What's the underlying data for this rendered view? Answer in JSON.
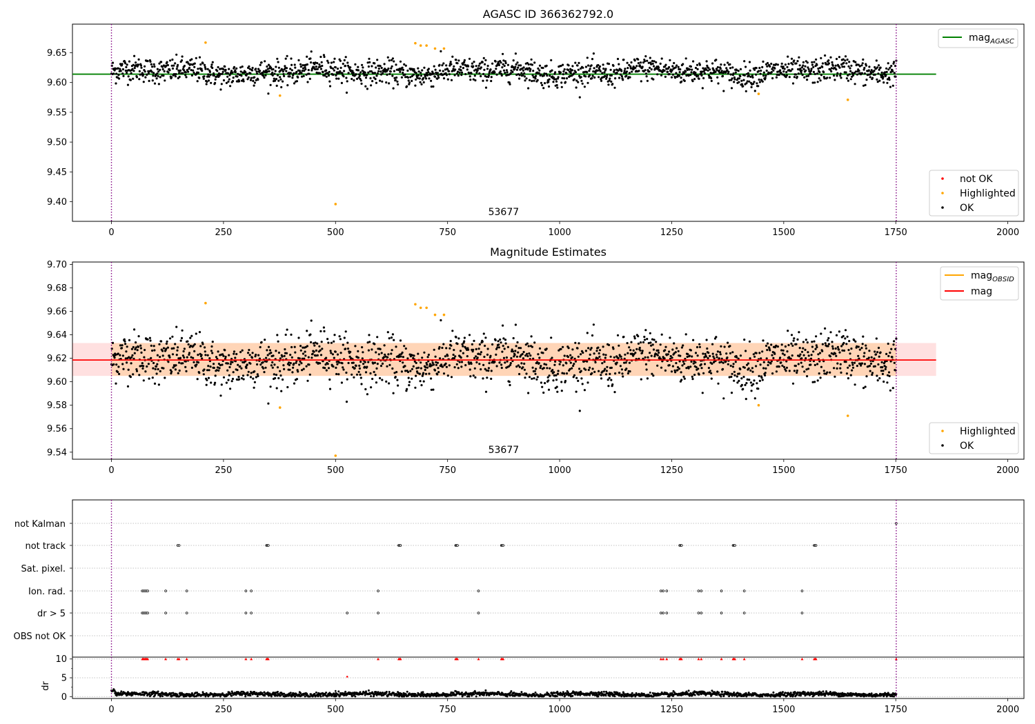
{
  "chart_data": [
    {
      "type": "scatter",
      "title": "AGASC ID 366362792.0",
      "xlabel": "",
      "ylabel": "",
      "xlim": [
        -87,
        2036
      ],
      "ylim": [
        9.367,
        9.698
      ],
      "xticks": [
        0,
        250,
        500,
        750,
        1000,
        1250,
        1500,
        1750,
        2000
      ],
      "yticks": [
        9.4,
        9.45,
        9.5,
        9.55,
        9.6,
        9.65
      ],
      "ytick_labels": [
        "9.40",
        "9.45",
        "9.50",
        "9.55",
        "9.60",
        "9.65"
      ],
      "obs_boundaries": [
        0,
        1751
      ],
      "obs_label": "53677",
      "obs_label_x": 875,
      "mag_agasc": 9.614,
      "mag_agasc_xrange": [
        -87,
        1840
      ],
      "ok_range": [
        0,
        1751
      ],
      "ok_center": 9.618,
      "ok_sigma": 0.013,
      "highlighted": [
        [
          210,
          9.667
        ],
        [
          376,
          9.578
        ],
        [
          500,
          9.396
        ],
        [
          678,
          9.666
        ],
        [
          690,
          9.662
        ],
        [
          703,
          9.662
        ],
        [
          722,
          9.657
        ],
        [
          742,
          9.657
        ],
        [
          1444,
          9.581
        ],
        [
          1643,
          9.571
        ]
      ],
      "legends": [
        {
          "position": "upper-right",
          "entries": [
            {
              "label": "mag",
              "sub": "AGASC",
              "color": "#008000",
              "kind": "line"
            }
          ]
        },
        {
          "position": "lower-right",
          "entries": [
            {
              "label": "not OK",
              "color": "#ff0000",
              "kind": "marker"
            },
            {
              "label": "Highlighted",
              "color": "#ffa500",
              "kind": "marker"
            },
            {
              "label": "OK",
              "color": "#000000",
              "kind": "marker"
            }
          ]
        }
      ]
    },
    {
      "type": "scatter",
      "title": "Magnitude Estimates",
      "xlabel": "",
      "ylabel": "",
      "xlim": [
        -87,
        2036
      ],
      "ylim": [
        9.534,
        9.702
      ],
      "xticks": [
        0,
        250,
        500,
        750,
        1000,
        1250,
        1500,
        1750,
        2000
      ],
      "yticks": [
        9.54,
        9.56,
        9.58,
        9.6,
        9.62,
        9.64,
        9.66,
        9.68,
        9.7
      ],
      "ytick_labels": [
        "9.54",
        "9.56",
        "9.58",
        "9.60",
        "9.62",
        "9.64",
        "9.66",
        "9.68",
        "9.70"
      ],
      "obs_boundaries": [
        0,
        1751
      ],
      "obs_label": "53677",
      "obs_label_x": 875,
      "mag": 9.6185,
      "mag_band": [
        9.605,
        9.633
      ],
      "mag_band_xrange": [
        -87,
        1840
      ],
      "mag_obsid_band": [
        9.605,
        9.633
      ],
      "mag_obsid_xrange": [
        0,
        1751
      ],
      "ok_range": [
        0,
        1751
      ],
      "ok_center": 9.618,
      "ok_sigma": 0.013,
      "highlighted": [
        [
          210,
          9.667
        ],
        [
          376,
          9.578
        ],
        [
          500,
          9.537
        ],
        [
          678,
          9.666
        ],
        [
          690,
          9.663
        ],
        [
          703,
          9.663
        ],
        [
          722,
          9.657
        ],
        [
          742,
          9.657
        ],
        [
          1444,
          9.58
        ],
        [
          1643,
          9.571
        ]
      ],
      "legends": [
        {
          "position": "upper-right",
          "entries": [
            {
              "label": "mag",
              "sub": "OBSID",
              "color": "#ffa500",
              "kind": "line"
            },
            {
              "label": "mag",
              "sub": "",
              "color": "#ff0000",
              "kind": "line"
            }
          ]
        },
        {
          "position": "lower-right",
          "entries": [
            {
              "label": "Highlighted",
              "color": "#ffa500",
              "kind": "marker"
            },
            {
              "label": "OK",
              "color": "#000000",
              "kind": "marker"
            }
          ]
        }
      ]
    },
    {
      "type": "scatter",
      "title": "",
      "xlabel": "",
      "ylabel": "",
      "xlim": [
        -87,
        2036
      ],
      "categories": [
        "not Kalman",
        "not track",
        "Sat. pixel.",
        "Ion. rad.",
        "dr > 5",
        "OBS not OK"
      ],
      "flags": {
        "not Kalman": [
          1751
        ],
        "not track": [
          148,
          151,
          346,
          348,
          350,
          641,
          643,
          645,
          768,
          770,
          772,
          870,
          872,
          874,
          1268,
          1270,
          1272,
          1387,
          1389,
          1391,
          1568,
          1570,
          1572
        ],
        "Sat. pixel.": [],
        "Ion. rad.": [
          69,
          72,
          75,
          78,
          81,
          121,
          168,
          300,
          312,
          595,
          819,
          1226,
          1231,
          1239,
          1310,
          1316,
          1361,
          1412,
          1541
        ],
        "dr > 5": [
          69,
          72,
          75,
          78,
          81,
          121,
          168,
          300,
          312,
          526,
          595,
          819,
          1226,
          1231,
          1239,
          1310,
          1316,
          1361,
          1412,
          1541
        ],
        "OBS not OK": []
      },
      "obs_boundaries": [
        0,
        1751
      ]
    },
    {
      "type": "scatter",
      "title": "",
      "xlabel": "",
      "ylabel": "dr",
      "xlim": [
        -87,
        2036
      ],
      "ylim": [
        -0.5,
        10.5
      ],
      "xticks": [
        0,
        250,
        500,
        750,
        1000,
        1250,
        1500,
        1750,
        2000
      ],
      "yticks": [
        0,
        5,
        10
      ],
      "ytick_labels": [
        "0",
        "5",
        "10"
      ],
      "obs_boundaries": [
        0,
        1751
      ],
      "clipped_at_10": [
        69,
        71,
        73,
        75,
        77,
        79,
        81,
        121,
        148,
        151,
        168,
        300,
        312,
        346,
        348,
        350,
        595,
        641,
        643,
        645,
        768,
        770,
        772,
        819,
        870,
        872,
        874,
        1226,
        1231,
        1239,
        1268,
        1270,
        1272,
        1310,
        1316,
        1361,
        1387,
        1389,
        1391,
        1412,
        1541,
        1568,
        1570,
        1572,
        1751
      ],
      "outliers": [
        [
          526,
          5.3
        ],
        [
          500,
          1.5
        ]
      ],
      "ok_range": [
        0,
        1751
      ],
      "ok_center": 0.6,
      "ok_sigma": 0.3
    }
  ]
}
